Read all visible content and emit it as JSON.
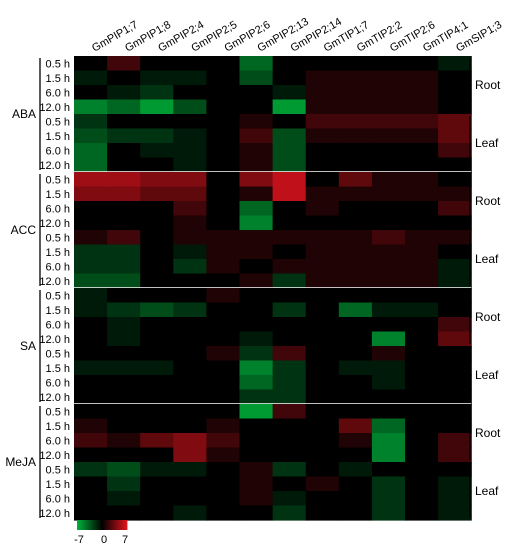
{
  "chart_data": {
    "type": "heatmap",
    "columns": [
      "GmPIP1;7",
      "GmPIP1;8",
      "GmPIP2;4",
      "GmPIP2;5",
      "GmPIP2;6",
      "GmPIP2;13",
      "GmPIP2;14",
      "GmTIP1;7",
      "GmTIP2;2",
      "GmTIP2;6",
      "GmTIP4;1",
      "GmSIP1;3"
    ],
    "treatments": [
      {
        "label": "ABA",
        "groups": [
          {
            "label": "Root",
            "rows": [
              {
                "time": "0.5 h",
                "values": [
                  0,
                  2,
                  0,
                  0,
                  0,
                  -4,
                  0,
                  0,
                  0,
                  0,
                  0,
                  -1
                ]
              },
              {
                "time": "1.5 h",
                "values": [
                  -1,
                  0,
                  -1,
                  -1,
                  0,
                  -3,
                  0,
                  1,
                  1,
                  1,
                  1,
                  0
                ]
              },
              {
                "time": "6.0 h",
                "values": [
                  0,
                  -1,
                  -2,
                  0,
                  0,
                  0,
                  -1,
                  1,
                  1,
                  1,
                  1,
                  0
                ]
              },
              {
                "time": "12.0 h",
                "values": [
                  -5,
                  -4,
                  -6,
                  -3,
                  0,
                  0,
                  -6,
                  1,
                  1,
                  1,
                  1,
                  0
                ]
              }
            ]
          },
          {
            "label": "Leaf",
            "rows": [
              {
                "time": "0.5 h",
                "values": [
                  -2,
                  0,
                  0,
                  0,
                  0,
                  1,
                  0,
                  2,
                  2,
                  2,
                  2,
                  3
                ]
              },
              {
                "time": "1.5 h",
                "values": [
                  -3,
                  -2,
                  -2,
                  -1,
                  0,
                  2,
                  -3,
                  1,
                  1,
                  1,
                  1,
                  3
                ]
              },
              {
                "time": "6.0 h",
                "values": [
                  -4,
                  0,
                  -1,
                  -1,
                  0,
                  1,
                  -3,
                  0,
                  0,
                  0,
                  0,
                  2
                ]
              },
              {
                "time": "12.0 h",
                "values": [
                  -4,
                  0,
                  0,
                  -1,
                  0,
                  1,
                  -3,
                  0,
                  0,
                  0,
                  0,
                  0
                ]
              }
            ]
          }
        ]
      },
      {
        "label": "ACC",
        "groups": [
          {
            "label": "Root",
            "rows": [
              {
                "time": "0.5 h",
                "values": [
                  5,
                  5,
                  4,
                  4,
                  0,
                  4,
                  6,
                  0,
                  3,
                  1,
                  1,
                  0
                ]
              },
              {
                "time": "1.5 h",
                "values": [
                  4,
                  4,
                  3,
                  3,
                  0,
                  1,
                  6,
                  1,
                  1,
                  1,
                  1,
                  1
                ]
              },
              {
                "time": "6.0 h",
                "values": [
                  0,
                  0,
                  0,
                  2,
                  0,
                  -4,
                  0,
                  1,
                  0,
                  0,
                  0,
                  2
                ]
              },
              {
                "time": "12.0 h",
                "values": [
                  0,
                  0,
                  0,
                  1,
                  0,
                  -5,
                  0,
                  0,
                  0,
                  0,
                  0,
                  0
                ]
              }
            ]
          },
          {
            "label": "Leaf",
            "rows": [
              {
                "time": "0.5 h",
                "values": [
                  1,
                  2,
                  0,
                  1,
                  1,
                  1,
                  1,
                  1,
                  1,
                  2,
                  1,
                  1
                ]
              },
              {
                "time": "1.5 h",
                "values": [
                  -2,
                  -2,
                  0,
                  -1,
                  1,
                  1,
                  0,
                  1,
                  1,
                  1,
                  1,
                  0
                ]
              },
              {
                "time": "6.0 h",
                "values": [
                  -2,
                  -2,
                  0,
                  -2,
                  1,
                  0,
                  1,
                  1,
                  1,
                  1,
                  1,
                  -1
                ]
              },
              {
                "time": "12.0 h",
                "values": [
                  -3,
                  -3,
                  0,
                  0,
                  0,
                  1,
                  -2,
                  1,
                  1,
                  1,
                  1,
                  -1
                ]
              }
            ]
          }
        ]
      },
      {
        "label": "SA",
        "groups": [
          {
            "label": "Root",
            "rows": [
              {
                "time": "0.5 h",
                "values": [
                  -1,
                  0,
                  0,
                  0,
                  1,
                  0,
                  0,
                  0,
                  0,
                  0,
                  0,
                  0
                ]
              },
              {
                "time": "1.5 h",
                "values": [
                  -1,
                  -2,
                  -3,
                  -2,
                  0,
                  0,
                  -2,
                  0,
                  -4,
                  -1,
                  -1,
                  0
                ]
              },
              {
                "time": "6.0 h",
                "values": [
                  0,
                  -1,
                  0,
                  0,
                  0,
                  0,
                  0,
                  0,
                  0,
                  0,
                  0,
                  2
                ]
              },
              {
                "time": "12.0 h",
                "values": [
                  0,
                  -1,
                  0,
                  0,
                  0,
                  -1,
                  0,
                  0,
                  0,
                  -5,
                  0,
                  3
                ]
              }
            ]
          },
          {
            "label": "Leaf",
            "rows": [
              {
                "time": "0.5 h",
                "values": [
                  0,
                  0,
                  0,
                  0,
                  1,
                  -2,
                  2,
                  0,
                  0,
                  1,
                  0,
                  0
                ]
              },
              {
                "time": "1.5 h",
                "values": [
                  -1,
                  -1,
                  -1,
                  0,
                  0,
                  -5,
                  -2,
                  0,
                  -1,
                  -1,
                  0,
                  0
                ]
              },
              {
                "time": "6.0 h",
                "values": [
                  0,
                  0,
                  0,
                  0,
                  0,
                  -4,
                  -2,
                  0,
                  0,
                  -1,
                  0,
                  0
                ]
              },
              {
                "time": "12.0 h",
                "values": [
                  0,
                  0,
                  0,
                  0,
                  0,
                  -2,
                  -2,
                  0,
                  0,
                  0,
                  0,
                  0
                ]
              }
            ]
          }
        ]
      },
      {
        "label": "MeJA",
        "groups": [
          {
            "label": "Root",
            "rows": [
              {
                "time": "0.5 h",
                "values": [
                  0,
                  0,
                  0,
                  0,
                  0,
                  -6,
                  2,
                  0,
                  0,
                  0,
                  0,
                  0
                ]
              },
              {
                "time": "1.5 h",
                "values": [
                  1,
                  0,
                  0,
                  0,
                  1,
                  0,
                  0,
                  0,
                  3,
                  -4,
                  0,
                  0
                ]
              },
              {
                "time": "6.0 h",
                "values": [
                  2,
                  1,
                  3,
                  4,
                  2,
                  0,
                  0,
                  0,
                  1,
                  -5,
                  0,
                  2
                ]
              },
              {
                "time": "12.0 h",
                "values": [
                  0,
                  0,
                  0,
                  4,
                  1,
                  0,
                  0,
                  0,
                  0,
                  -5,
                  0,
                  2
                ]
              }
            ]
          },
          {
            "label": "Leaf",
            "rows": [
              {
                "time": "0.5 h",
                "values": [
                  -2,
                  -3,
                  -1,
                  -1,
                  0,
                  1,
                  -2,
                  0,
                  -1,
                  0,
                  0,
                  0
                ]
              },
              {
                "time": "1.5 h",
                "values": [
                  0,
                  -2,
                  0,
                  0,
                  0,
                  1,
                  0,
                  1,
                  0,
                  -2,
                  0,
                  -1
                ]
              },
              {
                "time": "6.0 h",
                "values": [
                  0,
                  -1,
                  0,
                  0,
                  0,
                  1,
                  -1,
                  0,
                  0,
                  -2,
                  0,
                  -1
                ]
              },
              {
                "time": "12.0 h",
                "values": [
                  0,
                  0,
                  0,
                  -1,
                  0,
                  0,
                  -2,
                  0,
                  0,
                  -2,
                  0,
                  -1
                ]
              }
            ]
          }
        ]
      }
    ],
    "color_scale": {
      "min": -7,
      "mid": 0,
      "max": 7,
      "low_color": "#00b43c",
      "mid_color": "#000000",
      "high_color": "#e0141e"
    },
    "colorbar_labels": [
      "-7",
      "0",
      "7"
    ]
  }
}
